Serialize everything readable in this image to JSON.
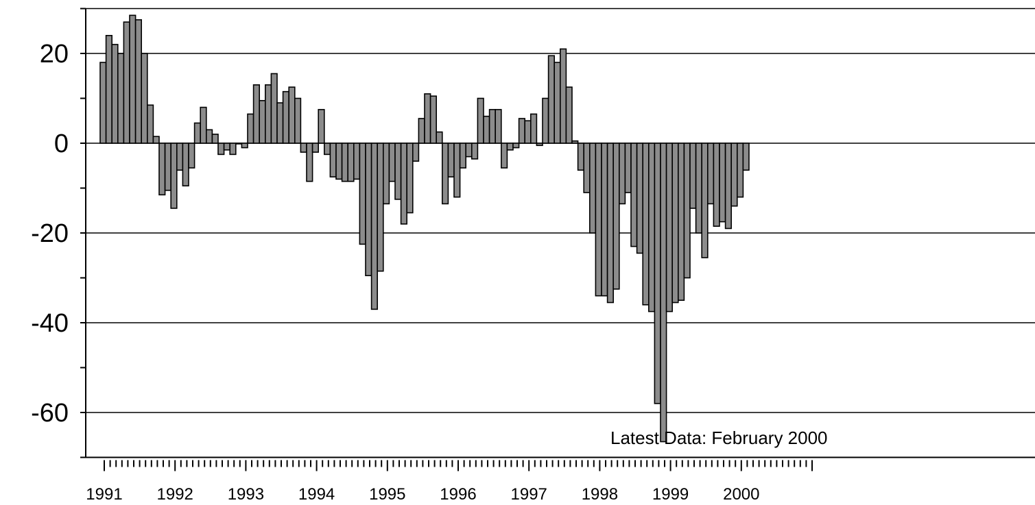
{
  "chart_data": {
    "type": "bar",
    "title": "",
    "xlabel": "",
    "ylabel": "",
    "ylim": [
      -70,
      30
    ],
    "y_ticks": [
      20,
      0,
      -20,
      -40,
      -60
    ],
    "y_tick_labels": [
      "20",
      "0",
      "-20",
      "-40",
      "-60"
    ],
    "grid": "horizontal major gridlines",
    "x_start": "1991-01",
    "x_tick_labels": [
      "1991",
      "1992",
      "1993",
      "1994",
      "1995",
      "1996",
      "1997",
      "1998",
      "1999",
      "2000"
    ],
    "annotation": "Latest Data: February 2000",
    "bar_color": "#8c8c8c",
    "series": [
      {
        "values": [
          18,
          24,
          22,
          20,
          27,
          28.5,
          27.5,
          20,
          8.5,
          1.5,
          -11.5,
          -10.5,
          -14.5,
          -6,
          -9.5,
          -5.5,
          4.5,
          8,
          3,
          2,
          -2.5,
          -1.5,
          -2.5,
          0,
          -1,
          6.5,
          13,
          9.5,
          13,
          15.5,
          9,
          11.5,
          12.5,
          10,
          -2,
          -8.5,
          -2,
          7.5,
          -2.5,
          -7.5,
          -8,
          -8.5,
          -8.5,
          -8,
          -22.5,
          -29.5,
          -37,
          -28.5,
          -13.5,
          -8.5,
          -12.5,
          -18,
          -15.5,
          -4,
          5.5,
          11,
          10.5,
          2.5,
          -13.5,
          -7.5,
          -12,
          -5.5,
          -3,
          -3.5,
          10,
          6,
          7.5,
          7.5,
          -5.5,
          -1.5,
          -1,
          5.5,
          5,
          6.5,
          -0.5,
          10,
          19.5,
          18,
          21,
          12.5,
          0.5,
          -6,
          -11,
          -20,
          -34,
          -34,
          -35.5,
          -32.5,
          -13.5,
          -11,
          -23,
          -24.5,
          -36,
          -37.5,
          -58,
          -66.5,
          -37.5,
          -35.5,
          -35,
          -30,
          -14.5,
          -20,
          -25.5,
          -13.5,
          -18.5,
          -17.5,
          -19,
          -14,
          -12,
          -6
        ]
      }
    ]
  }
}
